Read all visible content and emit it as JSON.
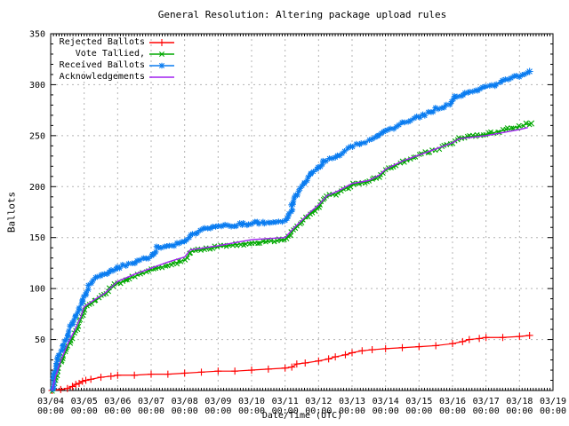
{
  "title": "General Resolution: Altering package upload rules",
  "axes": {
    "y_label": "Ballots",
    "x_label": "Date/Time (UTC)",
    "y_ticks": [
      0,
      50,
      100,
      150,
      200,
      250,
      300,
      350
    ],
    "x_ticks": [
      {
        "date": "03/04",
        "time": "00:00"
      },
      {
        "date": "03/05",
        "time": "00:00"
      },
      {
        "date": "03/06",
        "time": "00:00"
      },
      {
        "date": "03/07",
        "time": "00:00"
      },
      {
        "date": "03/08",
        "time": "00:00"
      },
      {
        "date": "03/09",
        "time": "00:00"
      },
      {
        "date": "03/10",
        "time": "00:00"
      },
      {
        "date": "03/11",
        "time": "00:00"
      },
      {
        "date": "03/12",
        "time": "00:00"
      },
      {
        "date": "03/13",
        "time": "00:00"
      },
      {
        "date": "03/14",
        "time": "00:00"
      },
      {
        "date": "03/15",
        "time": "00:00"
      },
      {
        "date": "03/16",
        "time": "00:00"
      },
      {
        "date": "03/17",
        "time": "00:00"
      },
      {
        "date": "03/18",
        "time": "00:00"
      },
      {
        "date": "03/19",
        "time": "00:00"
      }
    ]
  },
  "colors": {
    "background": "#ffffff",
    "axis": "#000000",
    "grid": "#b4b4b4",
    "rejected": "#ff0000",
    "tallied": "#00a800",
    "received": "#0a7cf0",
    "acknowledgements": "#a020f0"
  },
  "legend": {
    "position": "top-left",
    "entries": [
      {
        "label": "Rejected Ballots",
        "color": "#ff0000",
        "marker": "plus"
      },
      {
        "label": "Vote Tallied,",
        "color": "#00a800",
        "marker": "cross"
      },
      {
        "label": "Received Ballots",
        "color": "#0a7cf0",
        "marker": "star"
      },
      {
        "label": "Acknowledgements",
        "color": "#a020f0",
        "marker": "none"
      }
    ]
  },
  "chart_data": {
    "type": "line",
    "title": "General Resolution: Altering package upload rules",
    "xlabel": "Date/Time (UTC)",
    "ylabel": "Ballots",
    "x_unit": "days since 03/04 00:00 UTC",
    "xlim": [
      0,
      15
    ],
    "ylim": [
      0,
      350
    ],
    "grid": true,
    "x_major_tick_days": 1,
    "x_minor_tick_days": 0.0833,
    "y_major_tick": 50,
    "y_minor_tick": 10,
    "series": [
      {
        "name": "Rejected Ballots",
        "color": "#ff0000",
        "marker": "plus",
        "marker_density": "points",
        "points": [
          [
            0.04,
            0
          ],
          [
            0.3,
            1
          ],
          [
            0.5,
            2
          ],
          [
            0.65,
            4
          ],
          [
            0.75,
            6
          ],
          [
            0.85,
            7
          ],
          [
            0.95,
            9
          ],
          [
            1.05,
            10
          ],
          [
            1.2,
            11
          ],
          [
            1.5,
            13
          ],
          [
            1.8,
            14
          ],
          [
            2.0,
            15
          ],
          [
            2.5,
            15
          ],
          [
            3.0,
            16
          ],
          [
            3.5,
            16
          ],
          [
            4.0,
            17
          ],
          [
            4.5,
            18
          ],
          [
            5.0,
            19
          ],
          [
            5.5,
            19
          ],
          [
            6.0,
            20
          ],
          [
            6.5,
            21
          ],
          [
            7.0,
            22
          ],
          [
            7.2,
            23
          ],
          [
            7.35,
            26
          ],
          [
            7.6,
            27
          ],
          [
            8.0,
            29
          ],
          [
            8.3,
            31
          ],
          [
            8.5,
            33
          ],
          [
            8.8,
            35
          ],
          [
            9.0,
            37
          ],
          [
            9.3,
            39
          ],
          [
            9.6,
            40
          ],
          [
            10.0,
            41
          ],
          [
            10.5,
            42
          ],
          [
            11.0,
            43
          ],
          [
            11.5,
            44
          ],
          [
            12.0,
            46
          ],
          [
            12.3,
            48
          ],
          [
            12.5,
            50
          ],
          [
            12.8,
            51
          ],
          [
            13.0,
            52
          ],
          [
            13.5,
            52
          ],
          [
            14.0,
            53
          ],
          [
            14.3,
            54
          ]
        ]
      },
      {
        "name": "Vote Tallied,",
        "color": "#00a800",
        "marker": "cross",
        "marker_density": "dense",
        "points": [
          [
            0.04,
            0
          ],
          [
            0.1,
            6
          ],
          [
            0.15,
            12
          ],
          [
            0.22,
            20
          ],
          [
            0.3,
            27
          ],
          [
            0.4,
            34
          ],
          [
            0.5,
            42
          ],
          [
            0.6,
            49
          ],
          [
            0.7,
            55
          ],
          [
            0.8,
            61
          ],
          [
            0.9,
            70
          ],
          [
            1.0,
            80
          ],
          [
            1.15,
            84
          ],
          [
            1.3,
            87
          ],
          [
            1.5,
            92
          ],
          [
            1.7,
            98
          ],
          [
            2.0,
            105
          ],
          [
            2.3,
            109
          ],
          [
            2.6,
            113
          ],
          [
            3.0,
            118
          ],
          [
            3.5,
            123
          ],
          [
            4.0,
            128
          ],
          [
            4.08,
            131
          ],
          [
            4.17,
            136
          ],
          [
            4.5,
            138
          ],
          [
            5.0,
            141
          ],
          [
            5.5,
            143
          ],
          [
            6.0,
            145
          ],
          [
            6.5,
            146
          ],
          [
            7.0,
            148
          ],
          [
            7.1,
            151
          ],
          [
            7.25,
            157
          ],
          [
            7.5,
            165
          ],
          [
            7.75,
            174
          ],
          [
            8.0,
            180
          ],
          [
            8.1,
            184
          ],
          [
            8.25,
            190
          ],
          [
            8.6,
            194
          ],
          [
            8.8,
            198
          ],
          [
            9.0,
            202
          ],
          [
            9.3,
            204
          ],
          [
            9.6,
            206
          ],
          [
            9.8,
            210
          ],
          [
            10.0,
            216
          ],
          [
            10.25,
            220
          ],
          [
            10.5,
            224
          ],
          [
            10.75,
            227
          ],
          [
            11.0,
            231
          ],
          [
            11.5,
            237
          ],
          [
            12.0,
            243
          ],
          [
            12.2,
            248
          ],
          [
            12.5,
            249
          ],
          [
            13.0,
            251
          ],
          [
            13.5,
            255
          ],
          [
            14.0,
            259
          ],
          [
            14.2,
            261
          ],
          [
            14.35,
            262
          ]
        ]
      },
      {
        "name": "Received Ballots",
        "color": "#0a7cf0",
        "marker": "star",
        "marker_density": "dense",
        "points": [
          [
            0.04,
            0
          ],
          [
            0.08,
            8
          ],
          [
            0.12,
            16
          ],
          [
            0.17,
            24
          ],
          [
            0.22,
            31
          ],
          [
            0.3,
            38
          ],
          [
            0.4,
            45
          ],
          [
            0.5,
            53
          ],
          [
            0.6,
            62
          ],
          [
            0.7,
            69
          ],
          [
            0.8,
            76
          ],
          [
            0.9,
            85
          ],
          [
            1.0,
            92
          ],
          [
            1.1,
            100
          ],
          [
            1.25,
            108
          ],
          [
            1.4,
            111
          ],
          [
            1.6,
            114
          ],
          [
            1.8,
            117
          ],
          [
            2.0,
            120
          ],
          [
            2.25,
            123
          ],
          [
            2.5,
            126
          ],
          [
            2.75,
            129
          ],
          [
            3.0,
            131
          ],
          [
            3.1,
            134
          ],
          [
            3.17,
            140
          ],
          [
            3.4,
            141
          ],
          [
            3.7,
            143
          ],
          [
            4.0,
            145
          ],
          [
            4.08,
            147
          ],
          [
            4.17,
            153
          ],
          [
            4.4,
            156
          ],
          [
            4.7,
            159
          ],
          [
            5.0,
            161
          ],
          [
            5.3,
            162
          ],
          [
            5.7,
            163
          ],
          [
            6.0,
            164
          ],
          [
            6.4,
            165
          ],
          [
            6.8,
            166
          ],
          [
            7.0,
            167
          ],
          [
            7.08,
            169
          ],
          [
            7.17,
            176
          ],
          [
            7.25,
            186
          ],
          [
            7.4,
            195
          ],
          [
            7.5,
            200
          ],
          [
            7.65,
            207
          ],
          [
            7.8,
            213
          ],
          [
            8.0,
            219
          ],
          [
            8.15,
            224
          ],
          [
            8.3,
            227
          ],
          [
            8.5,
            229
          ],
          [
            8.65,
            231
          ],
          [
            8.8,
            235
          ],
          [
            9.0,
            240
          ],
          [
            9.2,
            242
          ],
          [
            9.4,
            244
          ],
          [
            9.6,
            246
          ],
          [
            9.8,
            250
          ],
          [
            10.0,
            255
          ],
          [
            10.25,
            258
          ],
          [
            10.5,
            262
          ],
          [
            10.75,
            265
          ],
          [
            11.0,
            269
          ],
          [
            11.25,
            272
          ],
          [
            11.5,
            276
          ],
          [
            11.75,
            279
          ],
          [
            12.0,
            282
          ],
          [
            12.08,
            288
          ],
          [
            12.3,
            290
          ],
          [
            12.6,
            293
          ],
          [
            13.0,
            297
          ],
          [
            13.25,
            300
          ],
          [
            13.5,
            303
          ],
          [
            13.75,
            306
          ],
          [
            14.0,
            309
          ],
          [
            14.15,
            311
          ],
          [
            14.3,
            313
          ]
        ]
      },
      {
        "name": "Acknowledgements",
        "color": "#a020f0",
        "marker": "none",
        "marker_density": "none",
        "points": [
          [
            0.04,
            0
          ],
          [
            0.15,
            14
          ],
          [
            0.3,
            29
          ],
          [
            0.5,
            45
          ],
          [
            0.7,
            58
          ],
          [
            0.9,
            72
          ],
          [
            1.0,
            82
          ],
          [
            1.3,
            89
          ],
          [
            1.6,
            95
          ],
          [
            2.0,
            107
          ],
          [
            2.5,
            114
          ],
          [
            3.0,
            120
          ],
          [
            3.5,
            126
          ],
          [
            4.0,
            131
          ],
          [
            4.17,
            138
          ],
          [
            4.6,
            140
          ],
          [
            5.0,
            142
          ],
          [
            5.5,
            145
          ],
          [
            6.0,
            148
          ],
          [
            6.5,
            149
          ],
          [
            7.0,
            150
          ],
          [
            7.25,
            159
          ],
          [
            7.5,
            167
          ],
          [
            7.75,
            175
          ],
          [
            8.0,
            182
          ],
          [
            8.25,
            191
          ],
          [
            8.6,
            196
          ],
          [
            9.0,
            203
          ],
          [
            9.5,
            206
          ],
          [
            9.8,
            211
          ],
          [
            10.0,
            217
          ],
          [
            10.5,
            225
          ],
          [
            11.0,
            231
          ],
          [
            11.5,
            237
          ],
          [
            12.0,
            243
          ],
          [
            12.2,
            247
          ],
          [
            13.0,
            250
          ],
          [
            13.5,
            253
          ],
          [
            14.0,
            256
          ],
          [
            14.25,
            258
          ]
        ]
      }
    ]
  }
}
